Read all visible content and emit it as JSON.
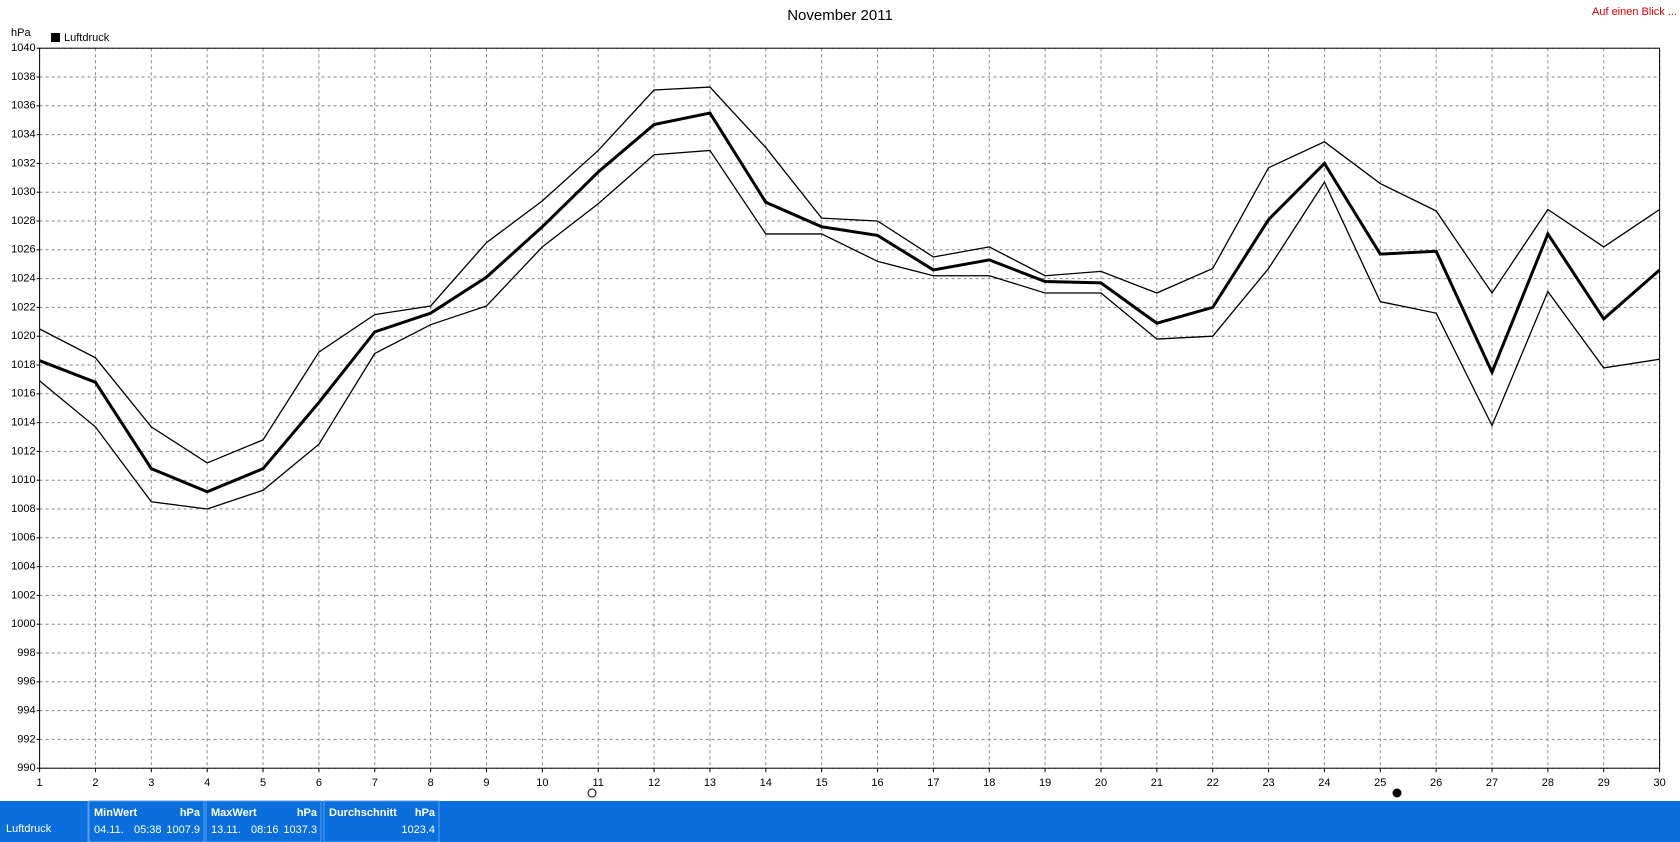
{
  "chart_data": {
    "type": "line",
    "title": "November 2011",
    "ylabel": "hPa",
    "x": [
      1,
      2,
      3,
      4,
      5,
      6,
      7,
      8,
      9,
      10,
      11,
      12,
      13,
      14,
      15,
      16,
      17,
      18,
      19,
      20,
      21,
      22,
      23,
      24,
      25,
      26,
      27,
      28,
      29,
      30
    ],
    "xlim": [
      1,
      30
    ],
    "xticks": [
      1,
      2,
      3,
      4,
      5,
      6,
      7,
      8,
      9,
      10,
      11,
      12,
      13,
      14,
      15,
      16,
      17,
      18,
      19,
      20,
      21,
      22,
      23,
      24,
      25,
      26,
      27,
      28,
      29,
      30
    ],
    "ylim": [
      990,
      1040
    ],
    "yticks": [
      990,
      992,
      994,
      996,
      998,
      1000,
      1002,
      1004,
      1006,
      1008,
      1010,
      1012,
      1014,
      1016,
      1018,
      1020,
      1022,
      1024,
      1026,
      1028,
      1030,
      1032,
      1034,
      1036,
      1038,
      1040
    ],
    "grid": true,
    "legend": "top-left",
    "series": [
      {
        "name": "Luftdruck",
        "color": "#000000",
        "line_width": 3,
        "values": [
          1018.3,
          1016.8,
          1010.8,
          1009.2,
          1010.8,
          1015.4,
          1020.3,
          1021.6,
          1024.1,
          1027.6,
          1031.4,
          1034.7,
          1035.5,
          1029.3,
          1027.6,
          1027.0,
          1024.6,
          1025.3,
          1023.8,
          1023.7,
          1020.9,
          1022.0,
          1028.1,
          1032.0,
          1025.7,
          1025.9,
          1017.5,
          1027.1,
          1021.2,
          1024.6
        ]
      },
      {
        "color": "#000000",
        "line_width": 1.3,
        "values": [
          1020.5,
          1018.5,
          1013.7,
          1011.2,
          1012.8,
          1018.9,
          1021.5,
          1022.1,
          1026.5,
          1029.4,
          1032.9,
          1037.1,
          1037.3,
          1033.1,
          1028.2,
          1028.0,
          1025.5,
          1026.2,
          1024.2,
          1024.5,
          1023.0,
          1024.7,
          1031.7,
          1033.5,
          1030.6,
          1028.7,
          1023.0,
          1028.8,
          1026.2,
          1028.8
        ]
      },
      {
        "color": "#000000",
        "line_width": 1.3,
        "values": [
          1016.9,
          1013.7,
          1008.5,
          1008.0,
          1009.3,
          1012.5,
          1018.8,
          1020.8,
          1022.1,
          1026.2,
          1029.2,
          1032.6,
          1032.9,
          1027.1,
          1027.1,
          1025.2,
          1024.2,
          1024.2,
          1023.0,
          1023.0,
          1019.8,
          1020.0,
          1024.7,
          1030.7,
          1022.4,
          1021.6,
          1013.8,
          1023.1,
          1017.8,
          1018.4
        ]
      }
    ]
  },
  "link": "Auf einen Blick ...",
  "footer": {
    "row_label": "Luftdruck",
    "stats": [
      {
        "label": "MinWert",
        "unit": "hPa",
        "date": "04.11.",
        "time": "05:38",
        "value": 1007.9
      },
      {
        "label": "MaxWert",
        "unit": "hPa",
        "date": "13.11.",
        "time": "08:16",
        "value": 1037.3
      },
      {
        "label": "Durchschnitt",
        "unit": "hPa",
        "value": 1023.4
      }
    ]
  }
}
